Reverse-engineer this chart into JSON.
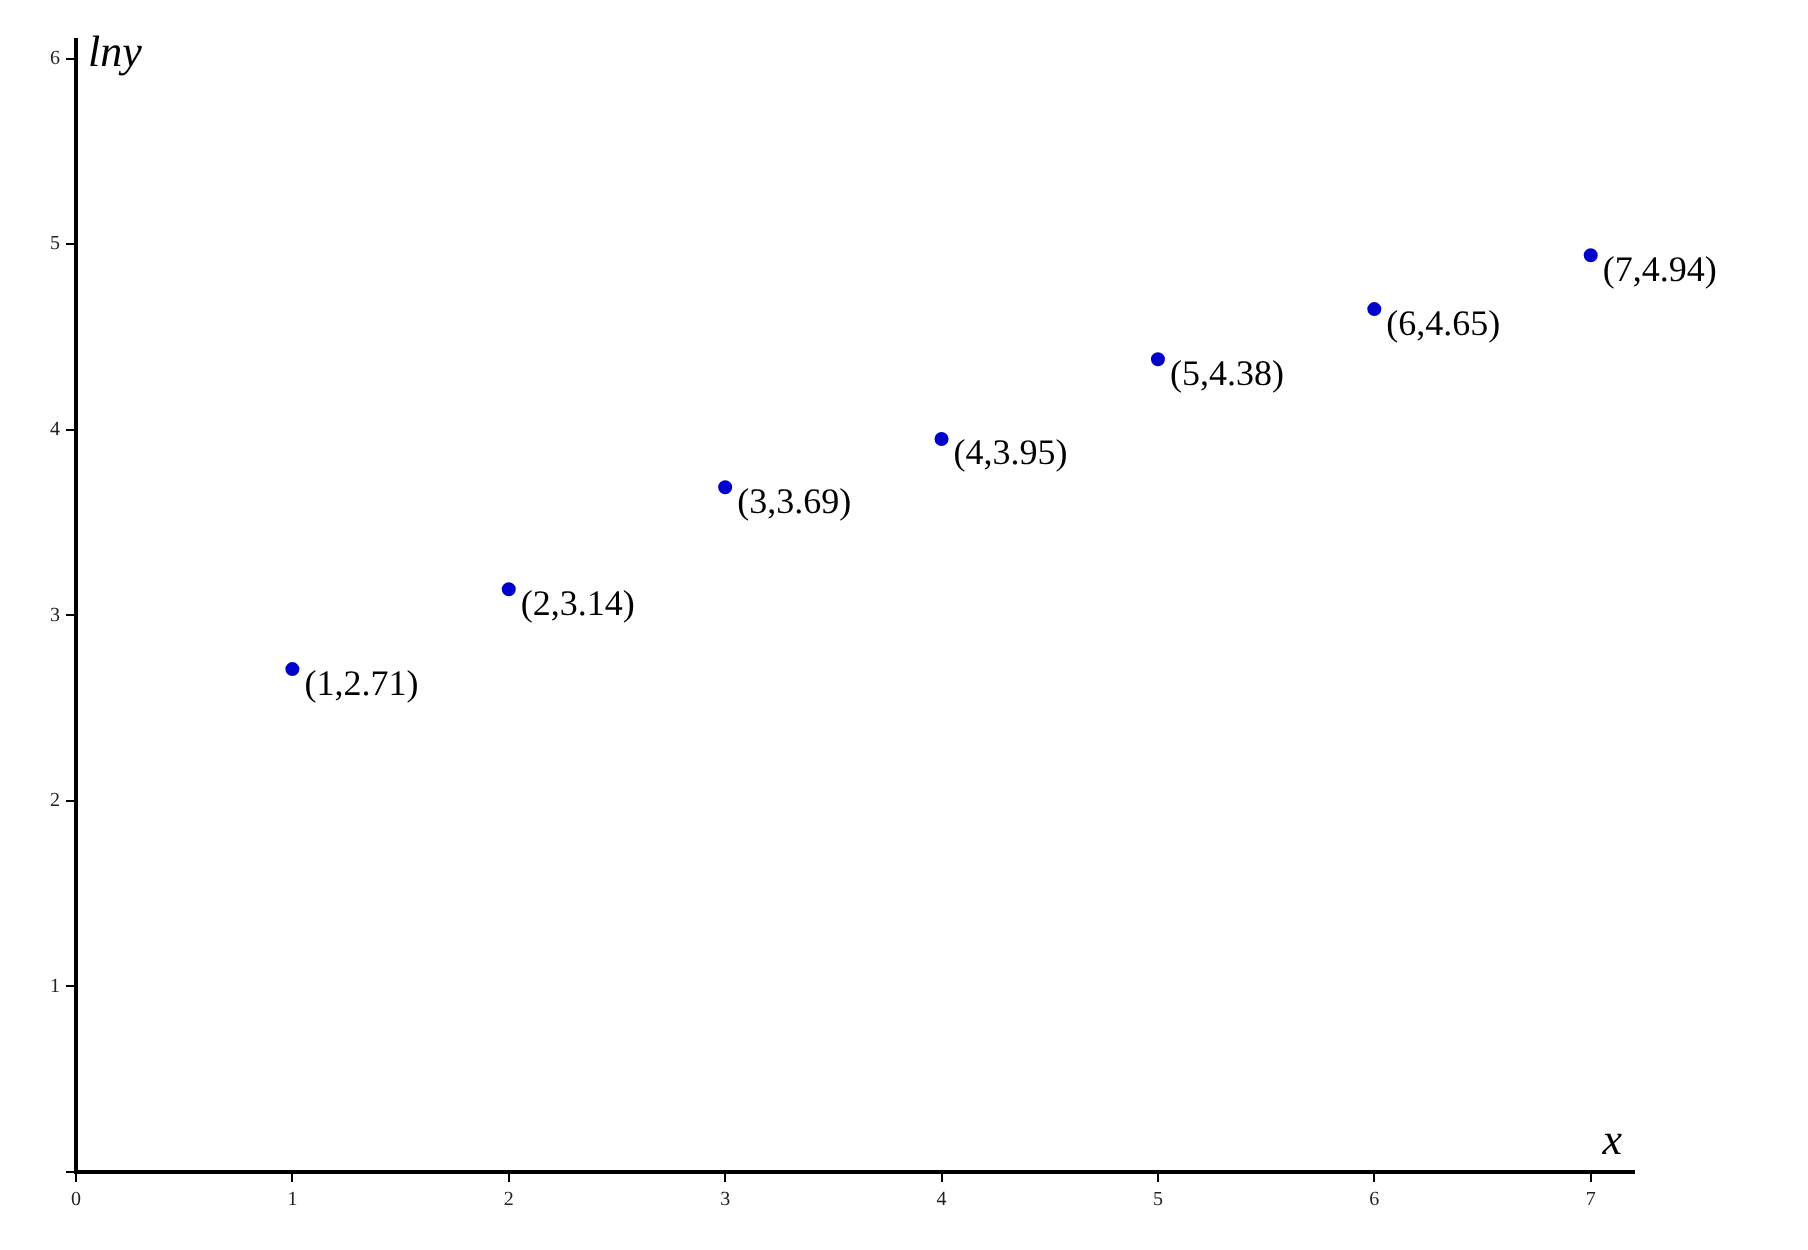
{
  "chart_data": {
    "type": "scatter",
    "xlabel": "x",
    "ylabel": "lny",
    "x": [
      1,
      2,
      3,
      4,
      5,
      6,
      7
    ],
    "values": [
      2.71,
      3.14,
      3.69,
      3.95,
      4.38,
      4.65,
      4.94
    ],
    "value_labels": [
      "(1,2.71)",
      "(2,3.14)",
      "(3,3.69)",
      "(4,3.95)",
      "(5,4.38)",
      "(6,4.65)",
      "(7,4.94)"
    ],
    "color": "#0000cc",
    "marker": "circle",
    "grid": false,
    "legend": false,
    "xlim": [
      0,
      7.2
    ],
    "ylim": [
      0,
      6.1
    ],
    "xticks": [
      0,
      1,
      2,
      3,
      4,
      5,
      6,
      7
    ],
    "yticks": [
      {
        "value": 0,
        "label": null
      },
      1,
      2,
      3,
      4,
      5,
      6
    ]
  }
}
